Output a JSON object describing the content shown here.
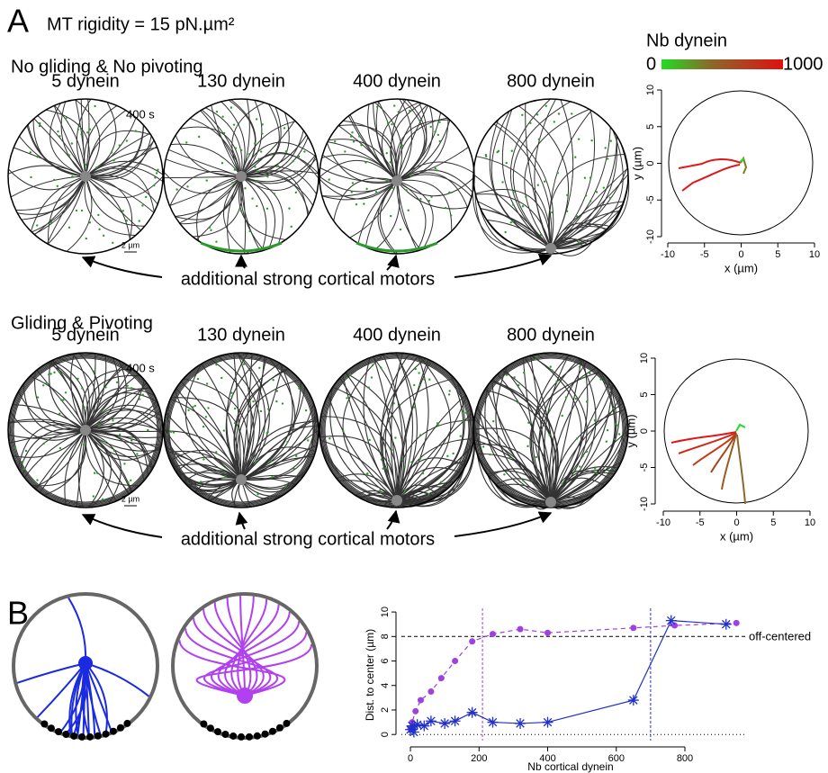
{
  "panel_a": {
    "label": "A",
    "title": "MT rigidity = 15 pN.µm²",
    "rows": [
      {
        "heading": "No gliding & No pivoting",
        "columns": [
          "5 dynein",
          "130 dynein",
          "400 dynein",
          "800 dynein"
        ],
        "time": "400 s",
        "scale": "2 µm",
        "annotation": "additional strong cortical motors"
      },
      {
        "heading": "Gliding & Pivoting",
        "columns": [
          "5 dynein",
          "130 dynein",
          "400 dynein",
          "800 dynein"
        ],
        "time": "400 s",
        "scale": "2 µm",
        "annotation": "additional strong cortical motors"
      }
    ],
    "colorbar": {
      "title": "Nb dynein",
      "min": 0,
      "max": 1000,
      "colors": [
        "#22dd22",
        "#8a6a2a",
        "#e01010"
      ]
    },
    "trajectory_plots": {
      "xlabel": "x (µm)",
      "ylabel": "y (µm)",
      "xlim": [
        -10,
        10
      ],
      "ylim": [
        -10,
        10
      ],
      "xticks": [
        -10,
        -5,
        0,
        5,
        10
      ],
      "yticks": [
        -10,
        -5,
        0,
        5,
        10
      ]
    }
  },
  "panel_b": {
    "label": "B",
    "chart_data": {
      "type": "line",
      "xlabel": "Nb cortical dynein",
      "ylabel": "Dist. to center (µm)",
      "xlim": [
        -25,
        960
      ],
      "ylim": [
        -0.5,
        10.3
      ],
      "xticks": [
        0,
        200,
        400,
        600,
        800
      ],
      "yticks": [
        0,
        2,
        4,
        6,
        8,
        10
      ],
      "series": [
        {
          "color": "#a040e0",
          "marker": "circle",
          "dash": true,
          "x": [
            0,
            5,
            15,
            30,
            60,
            90,
            130,
            180,
            240,
            320,
            400,
            650,
            770,
            950
          ],
          "values": [
            0.5,
            1.0,
            1.9,
            2.8,
            3.5,
            4.6,
            6.0,
            7.6,
            8.2,
            8.6,
            8.3,
            8.7,
            8.9,
            9.1
          ]
        },
        {
          "color": "#2030c8",
          "marker": "star",
          "dash": false,
          "x": [
            0,
            5,
            10,
            20,
            40,
            60,
            100,
            130,
            180,
            240,
            320,
            400,
            650,
            760,
            920
          ],
          "values": [
            0.4,
            0.7,
            0.2,
            0.8,
            0.7,
            1.1,
            0.9,
            1.1,
            1.8,
            1.0,
            0.9,
            1.0,
            2.8,
            9.3,
            9.0
          ]
        }
      ],
      "hlines": [
        {
          "value": 8,
          "label": "off-centered",
          "dash": "4,3"
        },
        {
          "value": 0,
          "dash": "1,3"
        }
      ],
      "vlines": [
        {
          "value": 210,
          "color": "#a040e0"
        },
        {
          "value": 700,
          "color": "#2030c8"
        }
      ]
    }
  }
}
